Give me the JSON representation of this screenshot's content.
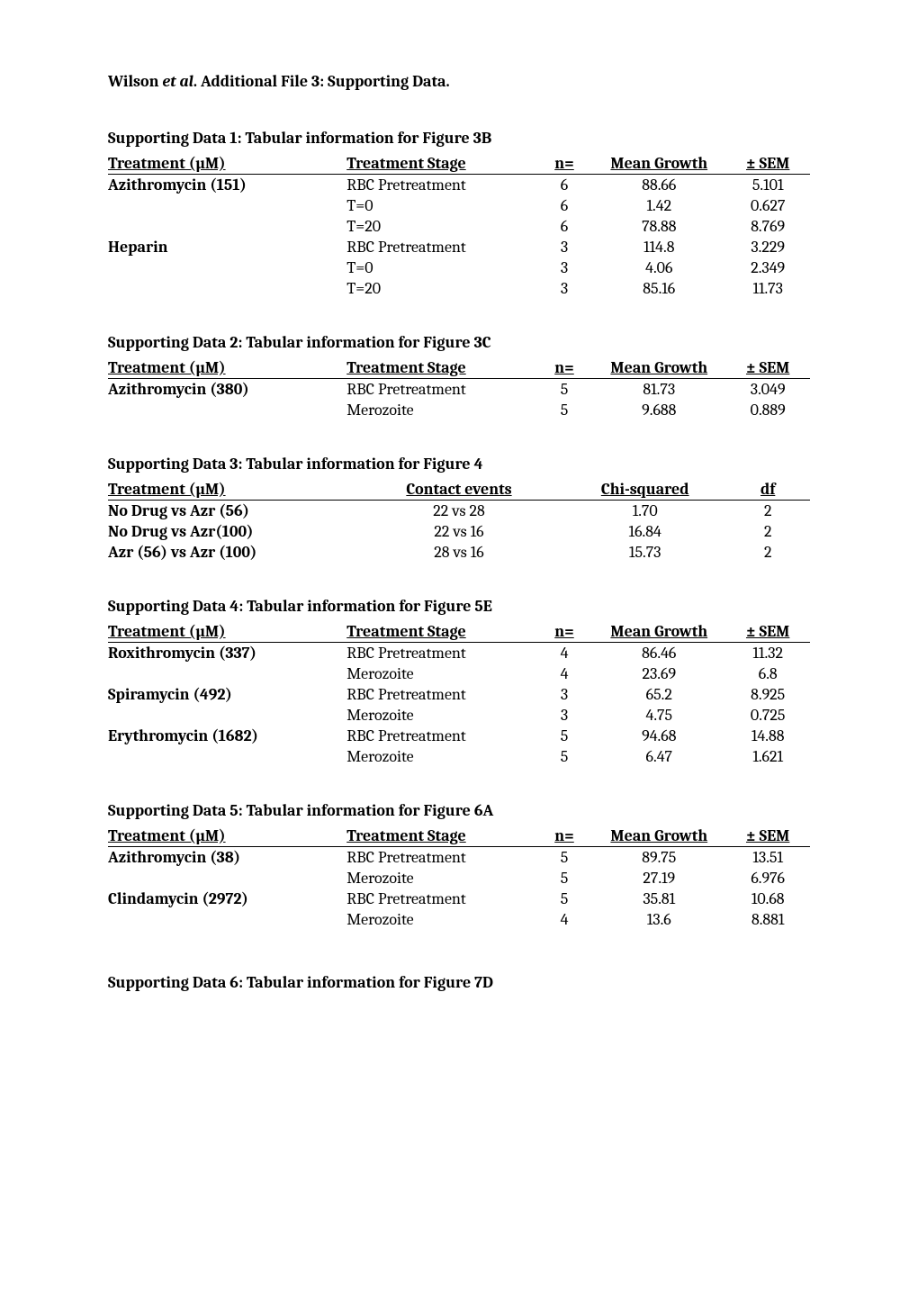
{
  "doc_title_prefix": "Wilson ",
  "doc_title_italic": "et al",
  "doc_title_suffix": ". Additional File 3: Supporting Data.",
  "tables": {
    "t1": {
      "title": "Supporting Data 1:  Tabular information for Figure 3B",
      "headers": [
        "Treatment (µM)",
        "Treatment Stage",
        "n=",
        "Mean Growth",
        "± SEM"
      ],
      "rows": [
        {
          "treat": "Azithromycin (151)",
          "bold": true,
          "stage": "RBC Pretreatment",
          "n": "6",
          "mean": "88.66",
          "sem": "5.101"
        },
        {
          "treat": "",
          "bold": false,
          "stage": "T=0",
          "n": "6",
          "mean": "1.42",
          "sem": "0.627"
        },
        {
          "treat": "",
          "bold": false,
          "stage": "T=20",
          "n": "6",
          "mean": "78.88",
          "sem": "8.769"
        },
        {
          "treat": "Heparin",
          "bold": true,
          "stage": "RBC Pretreatment",
          "n": "3",
          "mean": "114.8",
          "sem": "3.229"
        },
        {
          "treat": "",
          "bold": false,
          "stage": "T=0",
          "n": "3",
          "mean": "4.06",
          "sem": "2.349"
        },
        {
          "treat": "",
          "bold": false,
          "stage": "T=20",
          "n": "3",
          "mean": "85.16",
          "sem": "11.73"
        }
      ]
    },
    "t2": {
      "title": "Supporting Data 2:  Tabular information for Figure 3C",
      "headers": [
        "Treatment (µM)",
        "Treatment Stage",
        "n=",
        "Mean Growth",
        "± SEM"
      ],
      "rows": [
        {
          "treat": "Azithromycin (380)",
          "bold": true,
          "stage": "RBC Pretreatment",
          "n": "5",
          "mean": "81.73",
          "sem": "3.049"
        },
        {
          "treat": "",
          "bold": false,
          "stage": "Merozoite",
          "n": "5",
          "mean": "9.688",
          "sem": "0.889"
        }
      ]
    },
    "t3": {
      "title": "Supporting Data 3:  Tabular information for Figure 4",
      "headers": [
        "Treatment (µM)",
        "Contact events",
        "Chi-squared",
        "df"
      ],
      "rows": [
        {
          "treat": "No Drug vs Azr (56)",
          "bold": true,
          "ev": "22 vs 28",
          "chi": "1.70",
          "df": "2"
        },
        {
          "treat": "No Drug vs Azr(100)",
          "bold": true,
          "ev": "22 vs 16",
          "chi": "16.84",
          "df": "2"
        },
        {
          "treat": "Azr (56) vs Azr (100)",
          "bold": true,
          "ev": "28 vs 16",
          "chi": "15.73",
          "df": "2"
        }
      ]
    },
    "t4": {
      "title": "Supporting Data 4:  Tabular information for Figure 5E",
      "headers": [
        "Treatment (µM)",
        "Treatment Stage",
        "n=",
        "Mean Growth",
        "± SEM"
      ],
      "rows": [
        {
          "treat": "Roxithromycin (337)",
          "bold": true,
          "stage": "RBC Pretreatment",
          "n": "4",
          "mean": "86.46",
          "sem": "11.32"
        },
        {
          "treat": "",
          "bold": false,
          "stage": "Merozoite",
          "n": "4",
          "mean": "23.69",
          "sem": "6.8"
        },
        {
          "treat": "Spiramycin (492)",
          "bold": true,
          "stage": "RBC Pretreatment",
          "n": "3",
          "mean": "65.2",
          "sem": "8.925"
        },
        {
          "treat": "",
          "bold": false,
          "stage": "Merozoite",
          "n": "3",
          "mean": "4.75",
          "sem": "0.725"
        },
        {
          "treat": "Erythromycin (1682)",
          "bold": true,
          "stage": "RBC Pretreatment",
          "n": "5",
          "mean": "94.68",
          "sem": "14.88"
        },
        {
          "treat": "",
          "bold": false,
          "stage": "Merozoite",
          "n": "5",
          "mean": "6.47",
          "sem": "1.621"
        }
      ]
    },
    "t5": {
      "title": "Supporting Data 5:  Tabular information for Figure 6A",
      "headers": [
        "Treatment (µM)",
        "Treatment Stage",
        "n=",
        "Mean Growth",
        "± SEM"
      ],
      "rows": [
        {
          "treat": "Azithromycin (38)",
          "bold": true,
          "stage": "RBC Pretreatment",
          "n": "5",
          "mean": "89.75",
          "sem": "13.51"
        },
        {
          "treat": "",
          "bold": false,
          "stage": "Merozoite",
          "n": "5",
          "mean": "27.19",
          "sem": "6.976"
        },
        {
          "treat": "Clindamycin (2972)",
          "bold": true,
          "stage": "RBC Pretreatment",
          "n": "5",
          "mean": "35.81",
          "sem": "10.68"
        },
        {
          "treat": "",
          "bold": false,
          "stage": "Merozoite",
          "n": "4",
          "mean": "13.6",
          "sem": "8.881"
        }
      ]
    }
  },
  "closing": "Supporting Data 6:  Tabular information for Figure 7D"
}
